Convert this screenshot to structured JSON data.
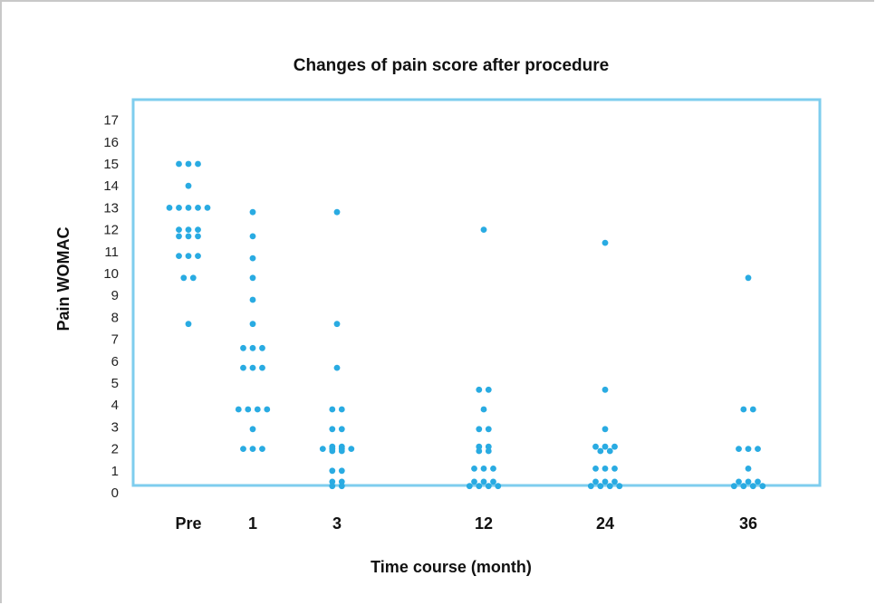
{
  "chart_data": {
    "type": "scatter",
    "title": "Changes of pain score after procedure",
    "xlabel": "Time course (month)",
    "ylabel": "Pain WOMAC",
    "categories": [
      "Pre",
      "1",
      "3",
      "12",
      "24",
      "36"
    ],
    "yticks": [
      0,
      1,
      2,
      3,
      4,
      5,
      6,
      7,
      8,
      9,
      10,
      11,
      12,
      13,
      14,
      15,
      16,
      17
    ],
    "ylim": [
      0,
      17
    ],
    "grid": false,
    "marker_color": "#29abe2",
    "frame_color": "#7ecdee",
    "points": {
      "Pre": [
        15,
        15,
        15,
        14,
        13,
        13,
        13,
        13,
        13,
        12,
        12,
        12,
        11.7,
        11.7,
        11.7,
        10.8,
        10.8,
        10.8,
        9.8,
        9.8,
        7.7
      ],
      "1": [
        12.8,
        11.7,
        10.7,
        9.8,
        8.8,
        7.7,
        6.6,
        6.6,
        6.6,
        5.7,
        5.7,
        5.7,
        3.8,
        3.8,
        3.8,
        3.8,
        2.9,
        2.0,
        2.0,
        2.0
      ],
      "3": [
        12.8,
        7.7,
        5.7,
        3.8,
        3.8,
        2.9,
        2.9,
        2.1,
        2.1,
        2.0,
        2.0,
        2.0,
        2.0,
        1.9,
        1.9,
        1.0,
        1.0,
        0.5,
        0.5,
        0.3,
        0.3
      ],
      "12": [
        12.0,
        4.7,
        4.7,
        3.8,
        2.9,
        2.9,
        2.1,
        2.1,
        1.9,
        1.9,
        1.1,
        1.1,
        1.1,
        0.5,
        0.5,
        0.5,
        0.3,
        0.3,
        0.3,
        0.3
      ],
      "24": [
        11.4,
        4.7,
        2.9,
        2.1,
        2.1,
        2.1,
        1.9,
        1.9,
        1.1,
        1.1,
        1.1,
        0.5,
        0.5,
        0.5,
        0.3,
        0.3,
        0.3,
        0.3
      ],
      "36": [
        9.8,
        3.8,
        3.8,
        2.0,
        2.0,
        2.0,
        1.1,
        0.5,
        0.5,
        0.5,
        0.3,
        0.3,
        0.3,
        0.3
      ]
    }
  }
}
